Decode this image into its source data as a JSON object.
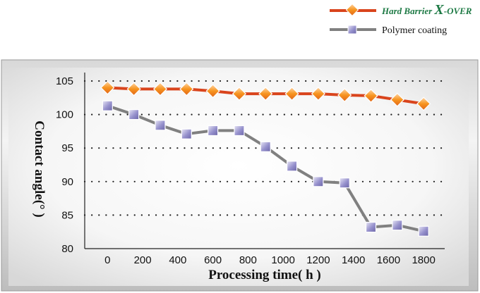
{
  "chart_data": {
    "type": "line",
    "title": "",
    "xlabel": "Processing time( h )",
    "ylabel": "Contact angle(°  )",
    "xlim": [
      -130,
      1920
    ],
    "ylim": [
      80,
      105
    ],
    "xticks": [
      0,
      200,
      400,
      600,
      800,
      1000,
      1200,
      1400,
      1600,
      1800
    ],
    "yticks": [
      80,
      85,
      90,
      95,
      100,
      105
    ],
    "grid": "horizontal dotted",
    "legend": "top-right",
    "series": [
      {
        "name_main": "Hard Barrier ",
        "name_accent": "X",
        "name_tail": "-OVER",
        "color": "#d9441c",
        "marker": "diamond",
        "marker_color": "#f6931f",
        "x": [
          0,
          150,
          300,
          450,
          600,
          750,
          900,
          1050,
          1200,
          1350,
          1500,
          1650,
          1800
        ],
        "y": [
          104.0,
          103.8,
          103.8,
          103.8,
          103.5,
          103.1,
          103.1,
          103.1,
          103.1,
          102.9,
          102.8,
          102.2,
          101.6
        ]
      },
      {
        "name": "Polymer coating",
        "color": "#808080",
        "marker": "square",
        "marker_color": "#8a85c4",
        "x": [
          0,
          150,
          300,
          450,
          600,
          750,
          900,
          1050,
          1200,
          1350,
          1500,
          1650,
          1800
        ],
        "y": [
          101.3,
          100.0,
          98.4,
          97.1,
          97.6,
          97.6,
          95.2,
          92.3,
          90.0,
          89.8,
          83.2,
          83.5,
          82.6
        ]
      }
    ]
  }
}
